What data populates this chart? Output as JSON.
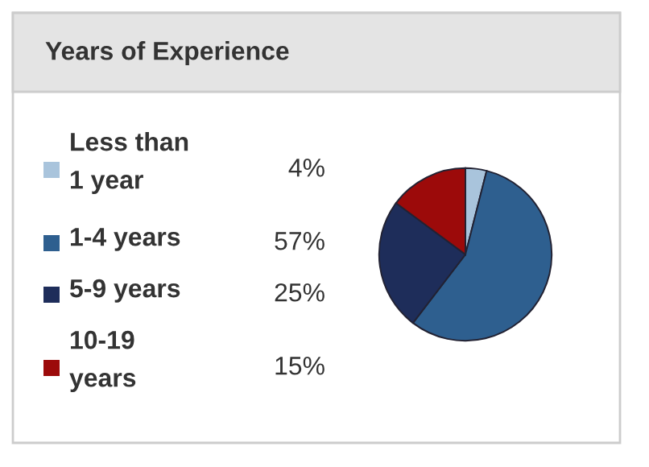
{
  "chart_data": {
    "type": "pie",
    "title": "Years of Experience",
    "categories": [
      "Less than\n1 year",
      "1-4 years",
      "5-9 years",
      "10-19\nyears"
    ],
    "values": [
      4,
      57,
      25,
      15
    ],
    "colors": [
      "#a9c4dc",
      "#2e5f8f",
      "#1e2d5a",
      "#9c0a0a"
    ],
    "value_labels": [
      "4%",
      "57%",
      "25%",
      "15%"
    ],
    "legend": "left"
  }
}
